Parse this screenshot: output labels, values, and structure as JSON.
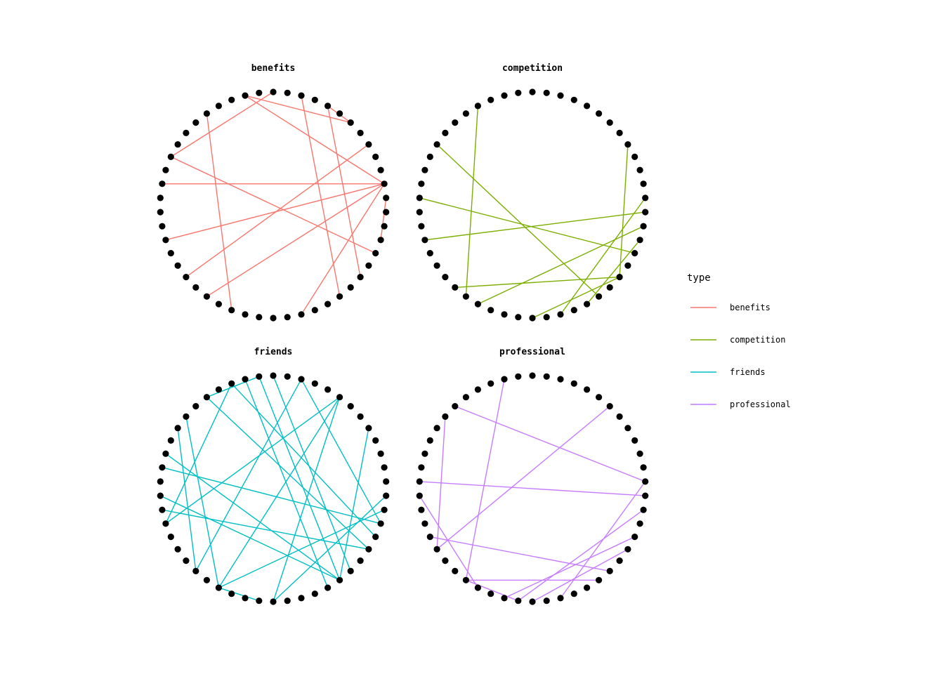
{
  "chart_data": {
    "type": "network",
    "node_count": 50,
    "panels": [
      {
        "title": "benefits",
        "color": "#F8766D",
        "edges": [
          [
            2,
            39
          ],
          [
            5,
            22
          ],
          [
            0,
            9
          ],
          [
            9,
            34
          ],
          [
            20,
            39
          ],
          [
            18,
            42
          ],
          [
            15,
            39
          ],
          [
            11,
            39
          ],
          [
            27,
            39
          ],
          [
            35,
            38
          ],
          [
            2,
            44
          ],
          [
            32,
            46
          ],
          [
            48,
            30
          ],
          [
            44,
            46
          ]
        ]
      },
      {
        "title": "competition",
        "color": "#7CAE00",
        "edges": [
          [
            8,
            30
          ],
          [
            4,
            20
          ],
          [
            27,
            38
          ],
          [
            12,
            34
          ],
          [
            25,
            32
          ],
          [
            29,
            35
          ],
          [
            19,
            32
          ],
          [
            42,
            32
          ],
          [
            21,
            36
          ],
          [
            15,
            37
          ]
        ]
      },
      {
        "title": "friends",
        "color": "#00BFC4",
        "edges": [
          [
            48,
            19
          ],
          [
            0,
            31
          ],
          [
            3,
            15
          ],
          [
            5,
            33
          ],
          [
            45,
            25
          ],
          [
            10,
            30
          ],
          [
            1,
            30
          ],
          [
            3,
            34
          ],
          [
            42,
            30
          ],
          [
            37,
            25
          ],
          [
            11,
            35
          ],
          [
            45,
            15
          ],
          [
            48,
            35
          ],
          [
            1,
            5
          ],
          [
            45,
            21
          ],
          [
            36,
            21
          ],
          [
            14,
            33
          ],
          [
            13,
            30
          ],
          [
            2,
            29
          ],
          [
            21,
            24
          ],
          [
            8,
            19
          ],
          [
            7,
            21
          ]
        ]
      },
      {
        "title": "professional",
        "color": "#C77CFF",
        "edges": [
          [
            6,
            38
          ],
          [
            2,
            20
          ],
          [
            7,
            17
          ],
          [
            16,
            31
          ],
          [
            12,
            37
          ],
          [
            13,
            21
          ],
          [
            20,
            24
          ],
          [
            20,
            30
          ],
          [
            23,
            34
          ],
          [
            44,
            17
          ],
          [
            38,
            27
          ],
          [
            36,
            24
          ],
          [
            25,
            33
          ]
        ]
      }
    ],
    "legend": {
      "title": "type",
      "items": [
        {
          "label": "benefits",
          "color": "#F8766D"
        },
        {
          "label": "competition",
          "color": "#7CAE00"
        },
        {
          "label": "friends",
          "color": "#00BFC4"
        },
        {
          "label": "professional",
          "color": "#C77CFF"
        }
      ]
    }
  }
}
